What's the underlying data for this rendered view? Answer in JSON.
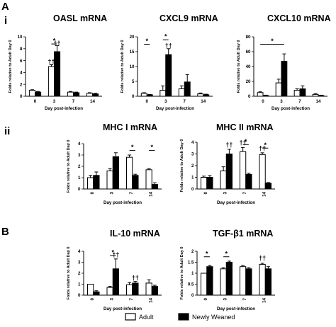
{
  "figure": {
    "section_labels": [
      "A",
      "i",
      "ii",
      "B"
    ],
    "legend": {
      "items": [
        {
          "label": "Adult",
          "color": "#ffffff"
        },
        {
          "label": "Newly Weaned",
          "color": "#000000"
        }
      ]
    },
    "colors": {
      "adult": "#ffffff",
      "newly_weaned": "#000000",
      "axis": "#000000"
    }
  },
  "chart_data": [
    {
      "type": "bar",
      "title": "OASL mRNA",
      "xlabel": "Day post-infection",
      "ylabel": "Folds relative to Adult Day 0",
      "categories": [
        "0",
        "3",
        "7",
        "14"
      ],
      "ylim": [
        0,
        10
      ],
      "yticks": [
        0,
        2,
        4,
        6,
        8,
        10
      ],
      "series": [
        {
          "name": "Adult",
          "values": [
            1.0,
            5.0,
            0.7,
            0.5
          ],
          "errors": [
            0.1,
            0.3,
            0.1,
            0.1
          ]
        },
        {
          "name": "Newly Weaned",
          "values": [
            0.7,
            7.5,
            0.6,
            0.4
          ],
          "errors": [
            0.1,
            1.0,
            0.1,
            0.1
          ]
        }
      ],
      "annotations": [
        {
          "text": "*",
          "type": "bracket",
          "from": "3",
          "to": "3",
          "y": 8.8
        },
        {
          "text": "††",
          "category": "3",
          "series": "Adult",
          "y": 5.5
        },
        {
          "text": "††",
          "category": "3",
          "series": "Newly Weaned",
          "y": 8.6
        }
      ]
    },
    {
      "type": "bar",
      "title": "CXCL9 mRNA",
      "xlabel": "Day post-infection",
      "ylabel": "Folds relative to Adult Day 0",
      "categories": [
        "0",
        "3",
        "7",
        "14"
      ],
      "ylim": [
        0,
        20
      ],
      "yticks": [
        0,
        5,
        10,
        15,
        20
      ],
      "series": [
        {
          "name": "Adult",
          "values": [
            1.0,
            2.0,
            2.5,
            0.8
          ],
          "errors": [
            0.2,
            1.5,
            1.0,
            0.3
          ]
        },
        {
          "name": "Newly Weaned",
          "values": [
            0.5,
            14.0,
            4.8,
            0.5
          ],
          "errors": [
            0.1,
            2.0,
            2.5,
            0.2
          ]
        }
      ],
      "annotations": [
        {
          "text": "*",
          "type": "bracket",
          "from": "0",
          "to": "0",
          "y": 17.5
        },
        {
          "text": "*",
          "type": "bracket",
          "from": "3",
          "to": "3",
          "y": 19.0
        },
        {
          "text": "††",
          "category": "3",
          "series": "Newly Weaned",
          "y": 16.3
        }
      ]
    },
    {
      "type": "bar",
      "title": "CXCL10 mRNA",
      "xlabel": "Day post-infection",
      "ylabel": "Folds relative to Adult Day 0",
      "categories": [
        "0",
        "3",
        "7",
        "14"
      ],
      "ylim": [
        0,
        80
      ],
      "yticks": [
        0,
        20,
        40,
        60,
        80
      ],
      "series": [
        {
          "name": "Adult",
          "values": [
            5.0,
            18.0,
            8.0,
            2.5
          ],
          "errors": [
            1.0,
            5.0,
            2.0,
            1.0
          ]
        },
        {
          "name": "Newly Weaned",
          "values": [
            1.0,
            47.0,
            10.0,
            1.0
          ],
          "errors": [
            0.5,
            10.0,
            4.0,
            0.5
          ]
        }
      ],
      "annotations": [
        {
          "text": "*",
          "type": "bracket",
          "from": "0",
          "to": "3",
          "y": 70
        }
      ]
    },
    {
      "type": "bar",
      "title": "MHC I mRNA",
      "xlabel": "Day post-infection",
      "ylabel": "Folds relative to Adult Day 0",
      "categories": [
        "0",
        "3",
        "7",
        "14"
      ],
      "ylim": [
        0,
        4
      ],
      "yticks": [
        0,
        1,
        2,
        3,
        4
      ],
      "series": [
        {
          "name": "Adult",
          "values": [
            1.0,
            1.6,
            2.8,
            1.7
          ],
          "errors": [
            0.2,
            0.2,
            0.2,
            0.1
          ]
        },
        {
          "name": "Newly Weaned",
          "values": [
            1.2,
            2.85,
            1.2,
            0.4
          ],
          "errors": [
            0.3,
            0.35,
            0.1,
            0.15
          ]
        }
      ],
      "annotations": [
        {
          "text": "*",
          "type": "bracket",
          "from": "7",
          "to": "7",
          "y": 3.4
        },
        {
          "text": "*",
          "type": "bracket",
          "from": "14",
          "to": "14",
          "y": 3.4
        }
      ]
    },
    {
      "type": "bar",
      "title": "MHC II mRNA",
      "xlabel": "Day post-infection",
      "ylabel": "Folds relative to Adult Day 0",
      "categories": [
        "0",
        "3",
        "7",
        "14"
      ],
      "ylim": [
        0,
        4
      ],
      "yticks": [
        0,
        1,
        2,
        3,
        4
      ],
      "series": [
        {
          "name": "Adult",
          "values": [
            1.0,
            1.55,
            3.2,
            2.95
          ],
          "errors": [
            0.1,
            0.35,
            0.35,
            0.15
          ]
        },
        {
          "name": "Newly Weaned",
          "values": [
            1.0,
            3.0,
            1.25,
            0.5
          ],
          "errors": [
            0.15,
            0.4,
            0.1,
            0.05
          ]
        }
      ],
      "annotations": [
        {
          "text": "*",
          "type": "bracket",
          "from": "7",
          "to": "7",
          "y": 3.8
        },
        {
          "text": "*",
          "type": "bracket",
          "from": "14",
          "to": "14",
          "y": 3.5
        },
        {
          "text": "††",
          "category": "3",
          "series": "Newly Weaned",
          "y": 3.6
        },
        {
          "text": "††",
          "category": "7",
          "series": "Adult",
          "y": 3.8
        },
        {
          "text": "††",
          "category": "14",
          "series": "Adult",
          "y": 3.3
        }
      ]
    },
    {
      "type": "bar",
      "title": "IL-10 mRNA",
      "xlabel": "Day post-infection",
      "ylabel": "Folds relative to Adult Day 0",
      "categories": [
        "0",
        "3",
        "7",
        "14"
      ],
      "ylim": [
        0,
        4
      ],
      "yticks": [
        0,
        1,
        2,
        3,
        4
      ],
      "series": [
        {
          "name": "Adult",
          "values": [
            1.0,
            0.7,
            0.95,
            1.1
          ],
          "errors": [
            0.0,
            0.1,
            0.2,
            0.3
          ]
        },
        {
          "name": "Newly Weaned",
          "values": [
            0.3,
            2.4,
            1.1,
            0.8
          ],
          "errors": [
            0.1,
            0.9,
            0.15,
            0.1
          ]
        }
      ],
      "annotations": [
        {
          "text": "*",
          "type": "bracket",
          "from": "3",
          "to": "3",
          "y": 3.6
        },
        {
          "text": "††",
          "category": "3",
          "series": "Newly Weaned",
          "y": 3.5
        },
        {
          "text": "††",
          "category": "7",
          "series": "Newly Weaned",
          "y": 1.4
        }
      ]
    },
    {
      "type": "bar",
      "title": "TGF-β1 mRNA",
      "xlabel": "Day post-infection",
      "ylabel": "Folds relative to Adult Day 0",
      "categories": [
        "0",
        "3",
        "7",
        "14"
      ],
      "ylim": [
        0,
        2.0
      ],
      "yticks": [
        0,
        0.5,
        1.0,
        1.5,
        2.0
      ],
      "series": [
        {
          "name": "Adult",
          "values": [
            1.0,
            1.2,
            1.3,
            1.4
          ],
          "errors": [
            0.0,
            0.05,
            0.05,
            0.05
          ]
        },
        {
          "name": "Newly Weaned",
          "values": [
            1.3,
            1.5,
            1.2,
            1.2
          ],
          "errors": [
            0.05,
            0.05,
            0.05,
            0.1
          ]
        }
      ],
      "annotations": [
        {
          "text": "*",
          "type": "bracket",
          "from": "0",
          "to": "0",
          "y": 1.75
        },
        {
          "text": "*",
          "type": "bracket",
          "from": "3",
          "to": "3",
          "y": 1.75
        },
        {
          "text": "††",
          "category": "14",
          "series": "Adult",
          "y": 1.6
        }
      ]
    }
  ]
}
